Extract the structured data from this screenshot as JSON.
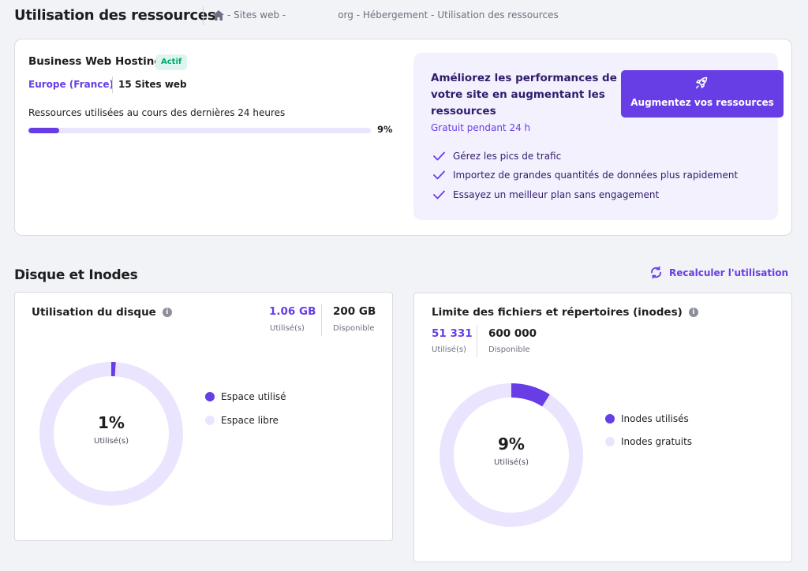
{
  "header": {
    "title": "Utilisation des ressources",
    "breadcrumb": {
      "part1": "- Sites web -",
      "part2": "org - Hébergement - Utilisation des ressources"
    }
  },
  "plan": {
    "name": "Business Web Hosting",
    "status": "Actif",
    "region": "Europe (France)",
    "sites": "15 Sites web",
    "resources_label": "Ressources utilisées au cours des dernières 24 heures",
    "usage_percent": 9,
    "usage_label": "9%"
  },
  "promo": {
    "title": "Améliorez les performances de votre site en augmentant les ressources",
    "subtitle": "Gratuit pendant 24 h",
    "button_label": "Augmentez vos ressources",
    "features": [
      "Gérez les pics de trafic",
      "Importez de grandes quantités de données plus rapidement",
      "Essayez un meilleur plan sans engagement"
    ]
  },
  "section": {
    "title": "Disque et Inodes",
    "recalc_label": "Recalculer l'utilisation"
  },
  "disk": {
    "title": "Utilisation du disque",
    "used_value": "1.06 GB",
    "used_label": "Utilisé(s)",
    "avail_value": "200 GB",
    "avail_label": "Disponible",
    "percent": 1,
    "percent_label": "1%",
    "center_label": "Utilisé(s)",
    "legend_used": "Espace utilisé",
    "legend_free": "Espace libre"
  },
  "inodes": {
    "title": "Limite des fichiers et répertoires (inodes)",
    "used_value": "51 331",
    "used_label": "Utilisé(s)",
    "avail_value": "600 000",
    "avail_label": "Disponible",
    "percent": 9,
    "percent_label": "9%",
    "center_label": "Utilisé(s)",
    "legend_used": "Inodes utilisés",
    "legend_free": "Inodes gratuits"
  },
  "colors": {
    "accent": "#673de6",
    "accent_light": "#ebe4ff",
    "success": "#00a86b"
  }
}
